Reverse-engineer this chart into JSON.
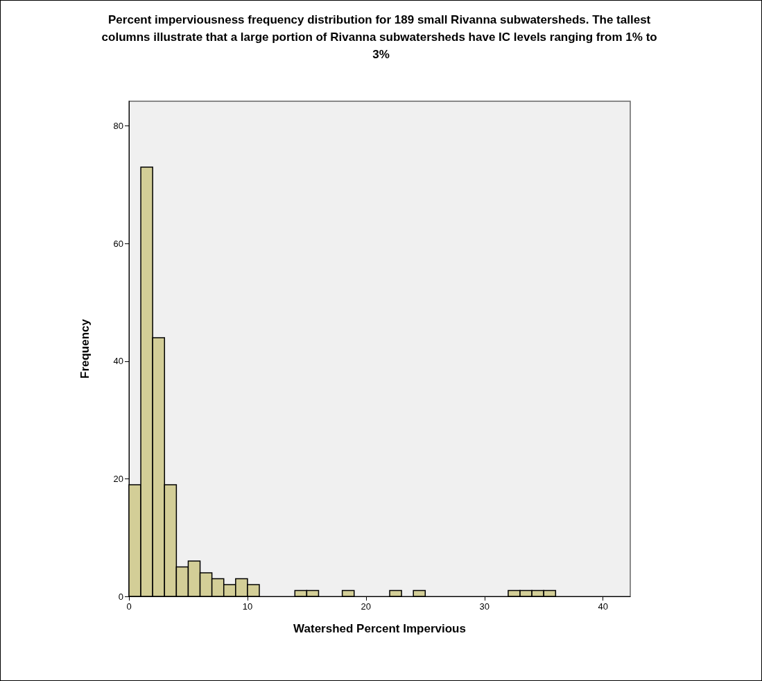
{
  "chart_data": {
    "type": "histogram",
    "title": "Percent imperviousness frequency distribution for 189 small Rivanna subwatersheds. The tallest columns illustrate that a large portion of Rivanna subwatersheds have IC levels ranging from 1% to 3%",
    "xlabel": "Watershed Percent Impervious",
    "ylabel": "Frequency",
    "bins": [
      0,
      1,
      2,
      3,
      4,
      5,
      6,
      7,
      8,
      9,
      10,
      11,
      12,
      13,
      14,
      15,
      16,
      17,
      18,
      19,
      20,
      21,
      22,
      23,
      24,
      25,
      26,
      27,
      28,
      29,
      30,
      31,
      32,
      33,
      34,
      35,
      36,
      37,
      38,
      39,
      40
    ],
    "values": [
      19,
      73,
      44,
      19,
      5,
      6,
      4,
      3,
      2,
      3,
      2,
      0,
      0,
      0,
      1,
      1,
      0,
      0,
      1,
      0,
      0,
      0,
      1,
      0,
      1,
      0,
      0,
      0,
      0,
      0,
      0,
      0,
      1,
      1,
      1,
      1,
      0,
      0,
      0,
      0
    ],
    "color": "#d3ce97",
    "xlim": [
      0,
      42.3
    ],
    "xticks": [
      0,
      10,
      20,
      30,
      40
    ],
    "ylim": [
      0,
      84.2
    ],
    "yticks": [
      0,
      20,
      40,
      60,
      80
    ],
    "grid": false
  }
}
